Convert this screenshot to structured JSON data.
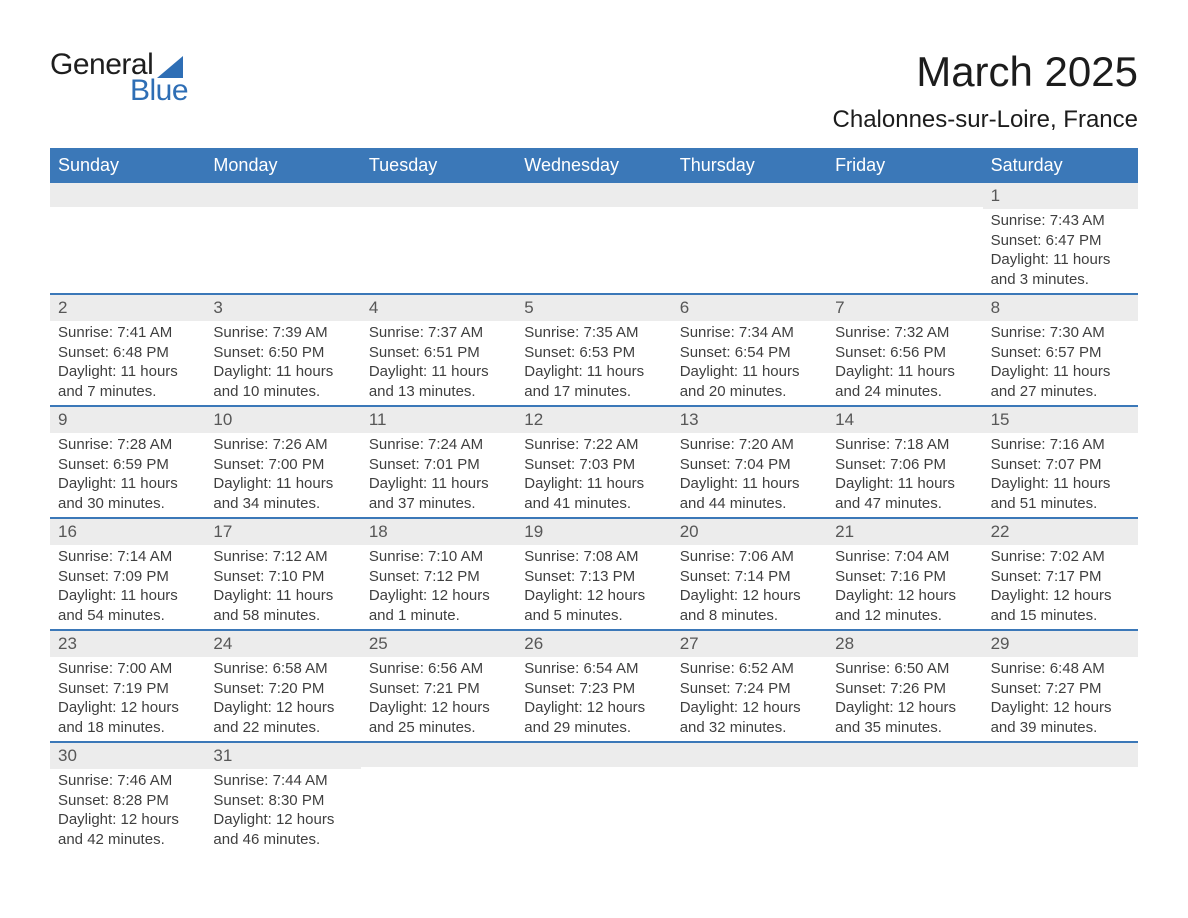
{
  "brand": {
    "word1": "General",
    "word2": "Blue",
    "accent": "#2e6eb5"
  },
  "title": "March 2025",
  "location": "Chalonnes-sur-Loire, France",
  "colors": {
    "header_bg": "#3b78b8",
    "header_text": "#ffffff",
    "daynum_bg": "#ececec",
    "daynum_text": "#575757",
    "body_text": "#3f3f3f",
    "divider": "#3b78b8",
    "page_bg": "#ffffff",
    "title_text": "#1c1c1c"
  },
  "layout": {
    "columns": 7,
    "rows": 6,
    "title_fontsize": 42,
    "location_fontsize": 24,
    "header_fontsize": 18,
    "daynum_fontsize": 17,
    "body_fontsize": 15,
    "cell_min_height": 100
  },
  "headers": [
    "Sunday",
    "Monday",
    "Tuesday",
    "Wednesday",
    "Thursday",
    "Friday",
    "Saturday"
  ],
  "weeks": [
    [
      {
        "empty": true
      },
      {
        "empty": true
      },
      {
        "empty": true
      },
      {
        "empty": true
      },
      {
        "empty": true
      },
      {
        "empty": true
      },
      {
        "n": "1",
        "sr": "Sunrise: 7:43 AM",
        "ss": "Sunset: 6:47 PM",
        "dl": "Daylight: 11 hours and 3 minutes."
      }
    ],
    [
      {
        "n": "2",
        "sr": "Sunrise: 7:41 AM",
        "ss": "Sunset: 6:48 PM",
        "dl": "Daylight: 11 hours and 7 minutes."
      },
      {
        "n": "3",
        "sr": "Sunrise: 7:39 AM",
        "ss": "Sunset: 6:50 PM",
        "dl": "Daylight: 11 hours and 10 minutes."
      },
      {
        "n": "4",
        "sr": "Sunrise: 7:37 AM",
        "ss": "Sunset: 6:51 PM",
        "dl": "Daylight: 11 hours and 13 minutes."
      },
      {
        "n": "5",
        "sr": "Sunrise: 7:35 AM",
        "ss": "Sunset: 6:53 PM",
        "dl": "Daylight: 11 hours and 17 minutes."
      },
      {
        "n": "6",
        "sr": "Sunrise: 7:34 AM",
        "ss": "Sunset: 6:54 PM",
        "dl": "Daylight: 11 hours and 20 minutes."
      },
      {
        "n": "7",
        "sr": "Sunrise: 7:32 AM",
        "ss": "Sunset: 6:56 PM",
        "dl": "Daylight: 11 hours and 24 minutes."
      },
      {
        "n": "8",
        "sr": "Sunrise: 7:30 AM",
        "ss": "Sunset: 6:57 PM",
        "dl": "Daylight: 11 hours and 27 minutes."
      }
    ],
    [
      {
        "n": "9",
        "sr": "Sunrise: 7:28 AM",
        "ss": "Sunset: 6:59 PM",
        "dl": "Daylight: 11 hours and 30 minutes."
      },
      {
        "n": "10",
        "sr": "Sunrise: 7:26 AM",
        "ss": "Sunset: 7:00 PM",
        "dl": "Daylight: 11 hours and 34 minutes."
      },
      {
        "n": "11",
        "sr": "Sunrise: 7:24 AM",
        "ss": "Sunset: 7:01 PM",
        "dl": "Daylight: 11 hours and 37 minutes."
      },
      {
        "n": "12",
        "sr": "Sunrise: 7:22 AM",
        "ss": "Sunset: 7:03 PM",
        "dl": "Daylight: 11 hours and 41 minutes."
      },
      {
        "n": "13",
        "sr": "Sunrise: 7:20 AM",
        "ss": "Sunset: 7:04 PM",
        "dl": "Daylight: 11 hours and 44 minutes."
      },
      {
        "n": "14",
        "sr": "Sunrise: 7:18 AM",
        "ss": "Sunset: 7:06 PM",
        "dl": "Daylight: 11 hours and 47 minutes."
      },
      {
        "n": "15",
        "sr": "Sunrise: 7:16 AM",
        "ss": "Sunset: 7:07 PM",
        "dl": "Daylight: 11 hours and 51 minutes."
      }
    ],
    [
      {
        "n": "16",
        "sr": "Sunrise: 7:14 AM",
        "ss": "Sunset: 7:09 PM",
        "dl": "Daylight: 11 hours and 54 minutes."
      },
      {
        "n": "17",
        "sr": "Sunrise: 7:12 AM",
        "ss": "Sunset: 7:10 PM",
        "dl": "Daylight: 11 hours and 58 minutes."
      },
      {
        "n": "18",
        "sr": "Sunrise: 7:10 AM",
        "ss": "Sunset: 7:12 PM",
        "dl": "Daylight: 12 hours and 1 minute."
      },
      {
        "n": "19",
        "sr": "Sunrise: 7:08 AM",
        "ss": "Sunset: 7:13 PM",
        "dl": "Daylight: 12 hours and 5 minutes."
      },
      {
        "n": "20",
        "sr": "Sunrise: 7:06 AM",
        "ss": "Sunset: 7:14 PM",
        "dl": "Daylight: 12 hours and 8 minutes."
      },
      {
        "n": "21",
        "sr": "Sunrise: 7:04 AM",
        "ss": "Sunset: 7:16 PM",
        "dl": "Daylight: 12 hours and 12 minutes."
      },
      {
        "n": "22",
        "sr": "Sunrise: 7:02 AM",
        "ss": "Sunset: 7:17 PM",
        "dl": "Daylight: 12 hours and 15 minutes."
      }
    ],
    [
      {
        "n": "23",
        "sr": "Sunrise: 7:00 AM",
        "ss": "Sunset: 7:19 PM",
        "dl": "Daylight: 12 hours and 18 minutes."
      },
      {
        "n": "24",
        "sr": "Sunrise: 6:58 AM",
        "ss": "Sunset: 7:20 PM",
        "dl": "Daylight: 12 hours and 22 minutes."
      },
      {
        "n": "25",
        "sr": "Sunrise: 6:56 AM",
        "ss": "Sunset: 7:21 PM",
        "dl": "Daylight: 12 hours and 25 minutes."
      },
      {
        "n": "26",
        "sr": "Sunrise: 6:54 AM",
        "ss": "Sunset: 7:23 PM",
        "dl": "Daylight: 12 hours and 29 minutes."
      },
      {
        "n": "27",
        "sr": "Sunrise: 6:52 AM",
        "ss": "Sunset: 7:24 PM",
        "dl": "Daylight: 12 hours and 32 minutes."
      },
      {
        "n": "28",
        "sr": "Sunrise: 6:50 AM",
        "ss": "Sunset: 7:26 PM",
        "dl": "Daylight: 12 hours and 35 minutes."
      },
      {
        "n": "29",
        "sr": "Sunrise: 6:48 AM",
        "ss": "Sunset: 7:27 PM",
        "dl": "Daylight: 12 hours and 39 minutes."
      }
    ],
    [
      {
        "n": "30",
        "sr": "Sunrise: 7:46 AM",
        "ss": "Sunset: 8:28 PM",
        "dl": "Daylight: 12 hours and 42 minutes."
      },
      {
        "n": "31",
        "sr": "Sunrise: 7:44 AM",
        "ss": "Sunset: 8:30 PM",
        "dl": "Daylight: 12 hours and 46 minutes."
      },
      {
        "empty": true
      },
      {
        "empty": true
      },
      {
        "empty": true
      },
      {
        "empty": true
      },
      {
        "empty": true
      }
    ]
  ]
}
